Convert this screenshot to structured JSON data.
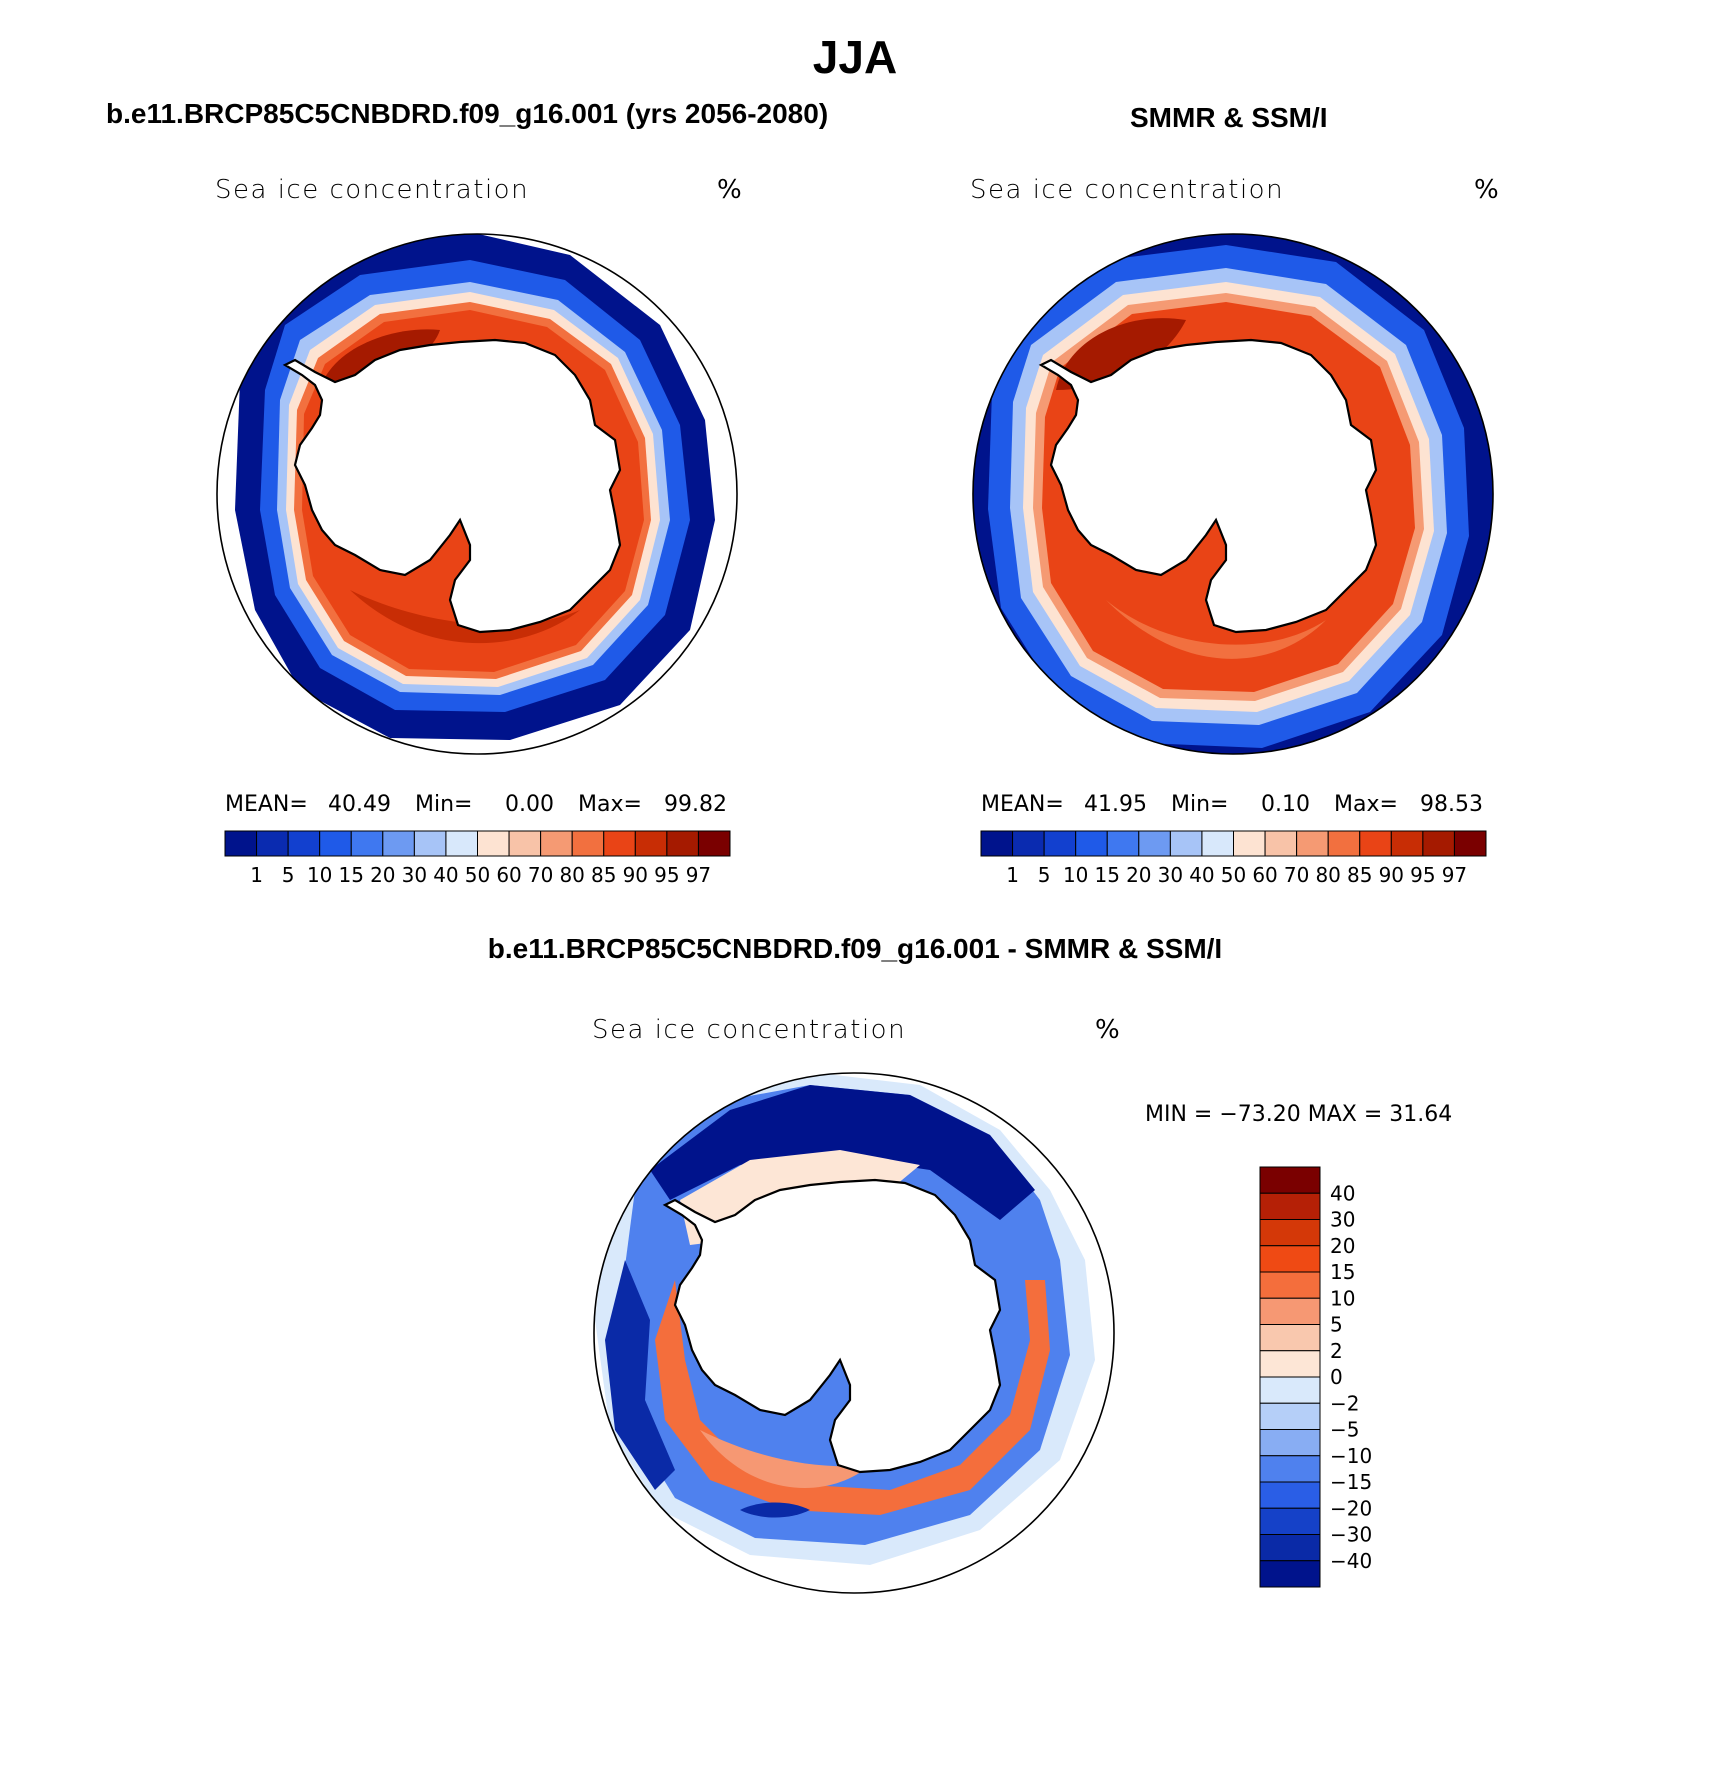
{
  "title": "JJA",
  "panels": {
    "model": {
      "title": "b.e11.BRCP85C5CNBDRD.f09_g16.001 (yrs 2056-2080)",
      "label": "Sea ice concentration",
      "unit": "%",
      "mean_label": "MEAN=",
      "mean": "40.49",
      "min_label": "Min=",
      "min": "0.00",
      "max_label": "Max=",
      "max": "99.82"
    },
    "obs": {
      "title": "SMMR & SSM/I",
      "label": "Sea ice concentration",
      "unit": "%",
      "mean_label": "MEAN=",
      "mean": "41.95",
      "min_label": "Min=",
      "min": "0.10",
      "max_label": "Max=",
      "max": "98.53"
    },
    "diff": {
      "title": "b.e11.BRCP85C5CNBDRD.f09_g16.001 - SMMR & SSM/I",
      "label": "Sea ice concentration",
      "unit": "%",
      "minmax": "MIN = −73.20 MAX =   31.64"
    }
  },
  "colorbar_conc": {
    "labels": [
      "1",
      "5",
      "10",
      "15",
      "20",
      "30",
      "40",
      "50",
      "60",
      "70",
      "80",
      "85",
      "90",
      "95",
      "97"
    ],
    "colors": [
      "#00138c",
      "#0a2bb0",
      "#1240cf",
      "#1f5ae8",
      "#3f78f0",
      "#6d9af2",
      "#a7c4f7",
      "#d8e8fb",
      "#fde3d2",
      "#f8c3a8",
      "#f59a73",
      "#f2703f",
      "#e94416",
      "#c82d05",
      "#a51a00",
      "#7a0000"
    ]
  },
  "colorbar_diff": {
    "labels": [
      "40",
      "30",
      "20",
      "15",
      "10",
      "5",
      "2",
      "0",
      "−2",
      "−5",
      "−10",
      "−15",
      "−20",
      "−30",
      "−40"
    ],
    "colors": [
      "#7a0000",
      "#b52006",
      "#d43808",
      "#ef4a14",
      "#f46e3c",
      "#f69873",
      "#f9c8ae",
      "#fde6d6",
      "#d9e9fb",
      "#b5cff8",
      "#88adf3",
      "#4f81ee",
      "#2a5ee6",
      "#1541c8",
      "#0a2aa7",
      "#00138c"
    ]
  }
}
